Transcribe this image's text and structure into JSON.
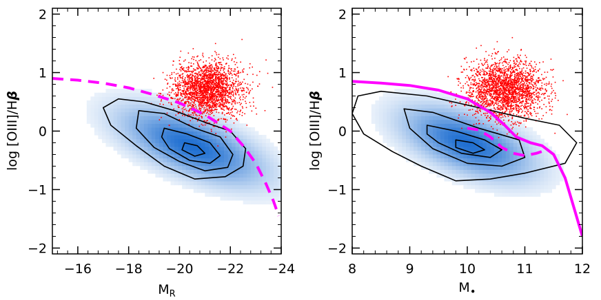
{
  "chart_data": [
    {
      "type": "scatter",
      "title": "",
      "xlabel": "M",
      "xlabel_sub": "R",
      "ylabel_prefix": "log ",
      "ylabel_main": "[OIII]/H",
      "ylabel_greek": "β",
      "xlim": [
        -15,
        -24
      ],
      "ylim": [
        -2.1,
        2.1
      ],
      "xticks": [
        -16,
        -18,
        -20,
        -22,
        -24
      ],
      "xtick_labels": [
        "−16",
        "−18",
        "−20",
        "−22",
        "−24"
      ],
      "yticks": [
        -2,
        -1,
        0,
        1,
        2
      ],
      "ytick_labels": [
        "−2",
        "−1",
        "0",
        "1",
        "2"
      ],
      "grid": false,
      "colors": {
        "density": "#1f6fd1",
        "scatter": "#ff0000",
        "contour": "#000000",
        "divider": "#ff00ff"
      },
      "density": {
        "center": [
          -20.5,
          -0.25
        ],
        "sigma_x": 1.5,
        "sigma_y": 0.35,
        "rho": 0.62
      },
      "contours": [
        {
          "level": "outer",
          "points": [
            [
              -17.0,
              0.4
            ],
            [
              -17.6,
              0.55
            ],
            [
              -18.6,
              0.5
            ],
            [
              -19.8,
              0.35
            ],
            [
              -21.0,
              0.15
            ],
            [
              -22.0,
              0.0
            ],
            [
              -22.6,
              -0.3
            ],
            [
              -22.5,
              -0.6
            ],
            [
              -21.8,
              -0.78
            ],
            [
              -20.6,
              -0.82
            ],
            [
              -19.4,
              -0.6
            ],
            [
              -18.3,
              -0.25
            ],
            [
              -17.3,
              0.1
            ]
          ]
        },
        {
          "level": "middle",
          "points": [
            [
              -18.4,
              0.35
            ],
            [
              -19.4,
              0.3
            ],
            [
              -20.6,
              0.05
            ],
            [
              -21.6,
              -0.1
            ],
            [
              -22.1,
              -0.4
            ],
            [
              -21.9,
              -0.62
            ],
            [
              -21.0,
              -0.68
            ],
            [
              -20.0,
              -0.52
            ],
            [
              -19.0,
              -0.28
            ],
            [
              -18.3,
              0.05
            ]
          ]
        },
        {
          "level": "inner",
          "points": [
            [
              -19.4,
              0.05
            ],
            [
              -20.3,
              -0.05
            ],
            [
              -21.2,
              -0.2
            ],
            [
              -21.6,
              -0.42
            ],
            [
              -21.2,
              -0.55
            ],
            [
              -20.4,
              -0.5
            ],
            [
              -19.6,
              -0.3
            ],
            [
              -19.3,
              -0.1
            ]
          ]
        },
        {
          "level": "core",
          "points": [
            [
              -20.2,
              -0.2
            ],
            [
              -20.7,
              -0.25
            ],
            [
              -21.0,
              -0.38
            ],
            [
              -20.6,
              -0.43
            ],
            [
              -20.1,
              -0.32
            ]
          ]
        }
      ],
      "agn_scatter": {
        "center": [
          -21.1,
          0.72
        ],
        "sigma_x": 0.9,
        "sigma_y": 0.32,
        "count": 2200
      },
      "dividing_line": {
        "style": "dashed",
        "points": [
          [
            -15.0,
            0.9
          ],
          [
            -16.0,
            0.87
          ],
          [
            -17.0,
            0.82
          ],
          [
            -18.0,
            0.74
          ],
          [
            -19.0,
            0.62
          ],
          [
            -20.0,
            0.48
          ],
          [
            -21.0,
            0.28
          ],
          [
            -22.0,
            0.0
          ],
          [
            -22.5,
            -0.25
          ],
          [
            -23.0,
            -0.55
          ],
          [
            -23.4,
            -0.9
          ],
          [
            -23.7,
            -1.2
          ],
          [
            -23.9,
            -1.45
          ]
        ]
      }
    },
    {
      "type": "scatter",
      "title": "",
      "xlabel": "M",
      "xlabel_sub": "•",
      "ylabel_prefix": "log ",
      "ylabel_main": "[OIII]/H",
      "ylabel_greek": "β",
      "xlim": [
        8,
        12
      ],
      "ylim": [
        -2.1,
        2.1
      ],
      "xticks": [
        8,
        9,
        10,
        11,
        12
      ],
      "xtick_labels": [
        "8",
        "9",
        "10",
        "11",
        "12"
      ],
      "yticks": [
        -2,
        -1,
        0,
        1,
        2
      ],
      "ytick_labels": [
        "−2",
        "−1",
        "0",
        "1",
        "2"
      ],
      "grid": false,
      "colors": {
        "density": "#1f6fd1",
        "scatter": "#ff0000",
        "contour": "#000000",
        "divider": "#ff00ff"
      },
      "density": {
        "center": [
          10.0,
          -0.2
        ],
        "sigma_x": 0.6,
        "sigma_y": 0.33,
        "rho": -0.55
      },
      "contours": [
        {
          "level": "outer",
          "points": [
            [
              8.1,
              0.6
            ],
            [
              8.5,
              0.68
            ],
            [
              9.3,
              0.6
            ],
            [
              10.2,
              0.4
            ],
            [
              11.0,
              0.22
            ],
            [
              11.6,
              0.1
            ],
            [
              11.9,
              -0.2
            ],
            [
              11.7,
              -0.55
            ],
            [
              11.0,
              -0.72
            ],
            [
              10.4,
              -0.82
            ],
            [
              9.8,
              -0.85
            ],
            [
              9.2,
              -0.6
            ],
            [
              8.7,
              -0.35
            ],
            [
              8.2,
              -0.05
            ],
            [
              8.0,
              0.3
            ]
          ]
        },
        {
          "level": "middle",
          "points": [
            [
              8.9,
              0.38
            ],
            [
              9.4,
              0.32
            ],
            [
              10.2,
              0.05
            ],
            [
              10.9,
              -0.15
            ],
            [
              11.0,
              -0.45
            ],
            [
              10.6,
              -0.6
            ],
            [
              10.0,
              -0.55
            ],
            [
              9.4,
              -0.3
            ],
            [
              9.0,
              0.05
            ]
          ]
        },
        {
          "level": "inner",
          "points": [
            [
              9.3,
              0.1
            ],
            [
              9.8,
              0.0
            ],
            [
              10.3,
              -0.15
            ],
            [
              10.6,
              -0.32
            ],
            [
              10.4,
              -0.45
            ],
            [
              9.9,
              -0.38
            ],
            [
              9.5,
              -0.2
            ],
            [
              9.3,
              -0.05
            ]
          ]
        },
        {
          "level": "core",
          "points": [
            [
              9.8,
              -0.15
            ],
            [
              10.1,
              -0.2
            ],
            [
              10.3,
              -0.32
            ],
            [
              10.1,
              -0.38
            ],
            [
              9.8,
              -0.28
            ]
          ]
        }
      ],
      "agn_scatter": {
        "center": [
          10.65,
          0.72
        ],
        "sigma_x": 0.45,
        "sigma_y": 0.33,
        "count": 2200
      },
      "dividing_lines": [
        {
          "style": "solid",
          "points": [
            [
              8.0,
              0.85
            ],
            [
              8.5,
              0.82
            ],
            [
              9.0,
              0.78
            ],
            [
              9.5,
              0.7
            ],
            [
              10.0,
              0.55
            ],
            [
              10.4,
              0.32
            ],
            [
              10.65,
              0.1
            ],
            [
              10.85,
              -0.1
            ],
            [
              11.1,
              -0.2
            ],
            [
              11.3,
              -0.25
            ],
            [
              11.5,
              -0.4
            ],
            [
              11.7,
              -0.8
            ],
            [
              11.85,
              -1.3
            ],
            [
              12.0,
              -1.8
            ]
          ]
        },
        {
          "style": "dashed",
          "points": [
            [
              10.0,
              0.05
            ],
            [
              10.2,
              0.02
            ],
            [
              10.4,
              -0.1
            ],
            [
              10.6,
              -0.28
            ],
            [
              10.8,
              -0.38
            ],
            [
              11.0,
              -0.42
            ],
            [
              11.2,
              -0.38
            ],
            [
              11.35,
              -0.33
            ]
          ]
        }
      ]
    }
  ]
}
